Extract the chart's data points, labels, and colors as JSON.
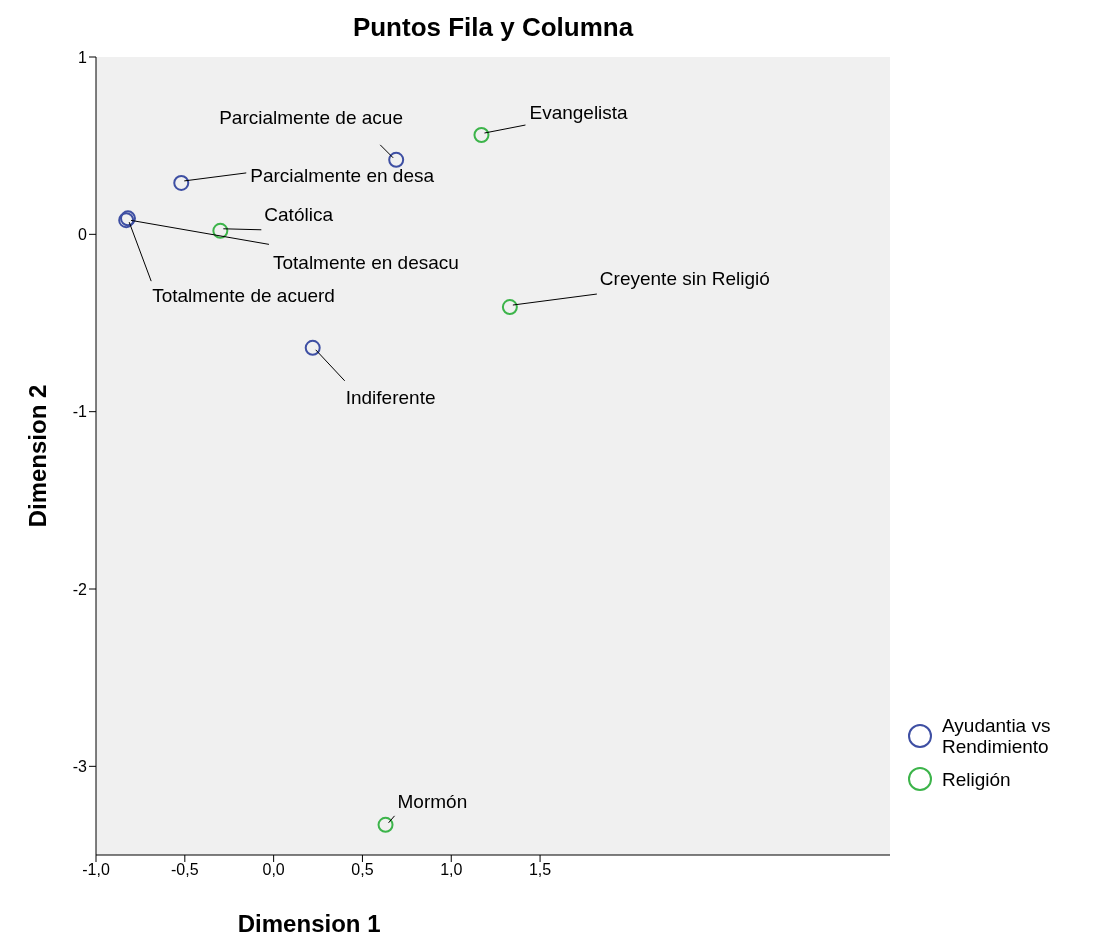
{
  "chart_data": {
    "type": "scatter",
    "title": "Puntos Fila y Columna",
    "xlabel": "Dimension 1",
    "ylabel": "Dimension 2",
    "xlim": [
      -1,
      3.47
    ],
    "ylim": [
      -3.5,
      1
    ],
    "xticks": [
      {
        "value": -1,
        "label": "-1,0"
      },
      {
        "value": -0.5,
        "label": "-0,5"
      },
      {
        "value": 0,
        "label": "0,0"
      },
      {
        "value": 0.5,
        "label": "0,5"
      },
      {
        "value": 1,
        "label": "1,0"
      },
      {
        "value": 1.5,
        "label": "1,5"
      }
    ],
    "yticks": [
      -3,
      -2,
      -1,
      0,
      1
    ],
    "grid": false,
    "legend": "right",
    "marker": "circle",
    "series": [
      {
        "name": "Ayudantia vs Rendimiento",
        "color": "#3e4fa3",
        "x": [
          0.69,
          -0.52,
          -0.83,
          -0.82,
          0.22
        ],
        "values": [
          0.42,
          0.29,
          0.08,
          0.09,
          -0.64
        ]
      },
      {
        "name": "Religión",
        "color": "#3cb44a",
        "x": [
          1.17,
          -0.3,
          1.33,
          0.63
        ],
        "values": [
          0.56,
          0.02,
          -0.41,
          -3.33
        ]
      }
    ],
    "annotations": [
      {
        "text": "Parcialmente de acue",
        "x": 0.69,
        "y": 0.42
      },
      {
        "text": "Parcialmente en desa",
        "x": -0.52,
        "y": 0.29
      },
      {
        "text": "Totalmente de acuerd",
        "x": -0.83,
        "y": 0.08
      },
      {
        "text": "Totalmente en desacu",
        "x": -0.82,
        "y": 0.09
      },
      {
        "text": "Indiferente",
        "x": 0.22,
        "y": -0.64
      },
      {
        "text": "Evangelista",
        "x": 1.17,
        "y": 0.56
      },
      {
        "text": "Católica",
        "x": -0.3,
        "y": 0.02
      },
      {
        "text": "Creyente sin Religió",
        "x": 1.33,
        "y": -0.41
      },
      {
        "text": "Mormón",
        "x": 0.63,
        "y": -3.33
      }
    ]
  }
}
